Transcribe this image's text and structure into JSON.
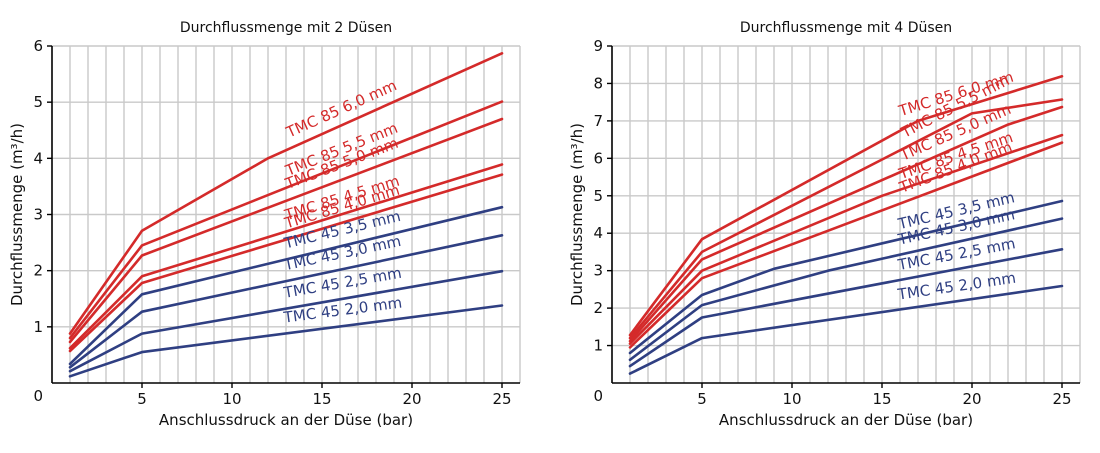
{
  "chart_data": [
    {
      "type": "line",
      "title": "Durchflussmenge mit 2 Düsen",
      "xlabel": "Anschlussdruck an der Düse (bar)",
      "ylabel": "Durchflussmenge (m³/h)",
      "origin_label": "0",
      "xlim": [
        0,
        26
      ],
      "ylim": [
        0,
        6
      ],
      "x_ticks": [
        5,
        10,
        15,
        20,
        25
      ],
      "y_ticks": [
        1,
        2,
        3,
        4,
        5,
        6
      ],
      "grid": true,
      "series": [
        {
          "name": "TMC 85 6,0 mm",
          "color": "#d42a2a",
          "points": [
            [
              1,
              0.88
            ],
            [
              5,
              2.71
            ],
            [
              12,
              4.0
            ],
            [
              25,
              5.87
            ]
          ]
        },
        {
          "name": "TMC 85 5,5 mm",
          "color": "#d42a2a",
          "points": [
            [
              1,
              0.8
            ],
            [
              5,
              2.45
            ],
            [
              25,
              5.01
            ]
          ]
        },
        {
          "name": "TMC 85 5,0 mm",
          "color": "#d42a2a",
          "points": [
            [
              1,
              0.73
            ],
            [
              5,
              2.27
            ],
            [
              25,
              4.7
            ]
          ]
        },
        {
          "name": "TMC 85 4,5 mm",
          "color": "#d42a2a",
          "points": [
            [
              1,
              0.62
            ],
            [
              5,
              1.9
            ],
            [
              25,
              3.89
            ]
          ]
        },
        {
          "name": "TMC 85 4,0 mm",
          "color": "#d42a2a",
          "points": [
            [
              1,
              0.57
            ],
            [
              5,
              1.78
            ],
            [
              25,
              3.71
            ]
          ]
        },
        {
          "name": "TMC 45 3,5 mm",
          "color": "#2f3f82",
          "points": [
            [
              1,
              0.34
            ],
            [
              5,
              1.58
            ],
            [
              25,
              3.13
            ]
          ]
        },
        {
          "name": "TMC 45 3,0 mm",
          "color": "#2f3f82",
          "points": [
            [
              1,
              0.28
            ],
            [
              5,
              1.27
            ],
            [
              25,
              2.63
            ]
          ]
        },
        {
          "name": "TMC 45 2,5 mm",
          "color": "#2f3f82",
          "points": [
            [
              1,
              0.21
            ],
            [
              5,
              0.88
            ],
            [
              25,
              1.99
            ]
          ]
        },
        {
          "name": "TMC 45 2,0 mm",
          "color": "#2f3f82",
          "points": [
            [
              1,
              0.12
            ],
            [
              5,
              0.55
            ],
            [
              25,
              1.38
            ]
          ]
        }
      ]
    },
    {
      "type": "line",
      "title": "Durchflussmenge mit 4 Düsen",
      "xlabel": "Anschlussdruck an der Düse (bar)",
      "ylabel": "Durchflussmenge (m³/h)",
      "origin_label": "0",
      "xlim": [
        0,
        26
      ],
      "ylim": [
        0,
        9
      ],
      "x_ticks": [
        5,
        10,
        15,
        20,
        25
      ],
      "y_ticks": [
        1,
        2,
        3,
        4,
        5,
        6,
        7,
        8,
        9
      ],
      "grid": true,
      "series": [
        {
          "name": "TMC 85 6,0 mm",
          "color": "#d42a2a",
          "points": [
            [
              1,
              1.28
            ],
            [
              5,
              3.84
            ],
            [
              17,
              7.0
            ],
            [
              25,
              8.19
            ]
          ]
        },
        {
          "name": "TMC 85 5,5 mm",
          "color": "#d42a2a",
          "points": [
            [
              1,
              1.2
            ],
            [
              5,
              3.5
            ],
            [
              20,
              7.2
            ],
            [
              25,
              7.57
            ]
          ]
        },
        {
          "name": "TMC 85 5,0 mm",
          "color": "#d42a2a",
          "points": [
            [
              1,
              1.12
            ],
            [
              5,
              3.3
            ],
            [
              22,
              6.9
            ],
            [
              25,
              7.37
            ]
          ]
        },
        {
          "name": "TMC 85 4,5 mm",
          "color": "#d42a2a",
          "points": [
            [
              1,
              1.05
            ],
            [
              5,
              3.0
            ],
            [
              15,
              5.0
            ],
            [
              25,
              6.62
            ]
          ]
        },
        {
          "name": "TMC 85 4,0 mm",
          "color": "#d42a2a",
          "points": [
            [
              1,
              0.95
            ],
            [
              5,
              2.8
            ],
            [
              25,
              6.42
            ]
          ]
        },
        {
          "name": "TMC 45 3,5 mm",
          "color": "#2f3f82",
          "points": [
            [
              1,
              0.8
            ],
            [
              5,
              2.35
            ],
            [
              9,
              3.05
            ],
            [
              25,
              4.86
            ]
          ]
        },
        {
          "name": "TMC 45 3,0 mm",
          "color": "#2f3f82",
          "points": [
            [
              1,
              0.62
            ],
            [
              5,
              2.08
            ],
            [
              12,
              3.0
            ],
            [
              25,
              4.39
            ]
          ]
        },
        {
          "name": "TMC 45 2,5 mm",
          "color": "#2f3f82",
          "points": [
            [
              1,
              0.45
            ],
            [
              5,
              1.75
            ],
            [
              25,
              3.57
            ]
          ]
        },
        {
          "name": "TMC 45 2,0 mm",
          "color": "#2f3f82",
          "points": [
            [
              1,
              0.25
            ],
            [
              5,
              1.2
            ],
            [
              25,
              2.59
            ]
          ]
        }
      ]
    }
  ]
}
